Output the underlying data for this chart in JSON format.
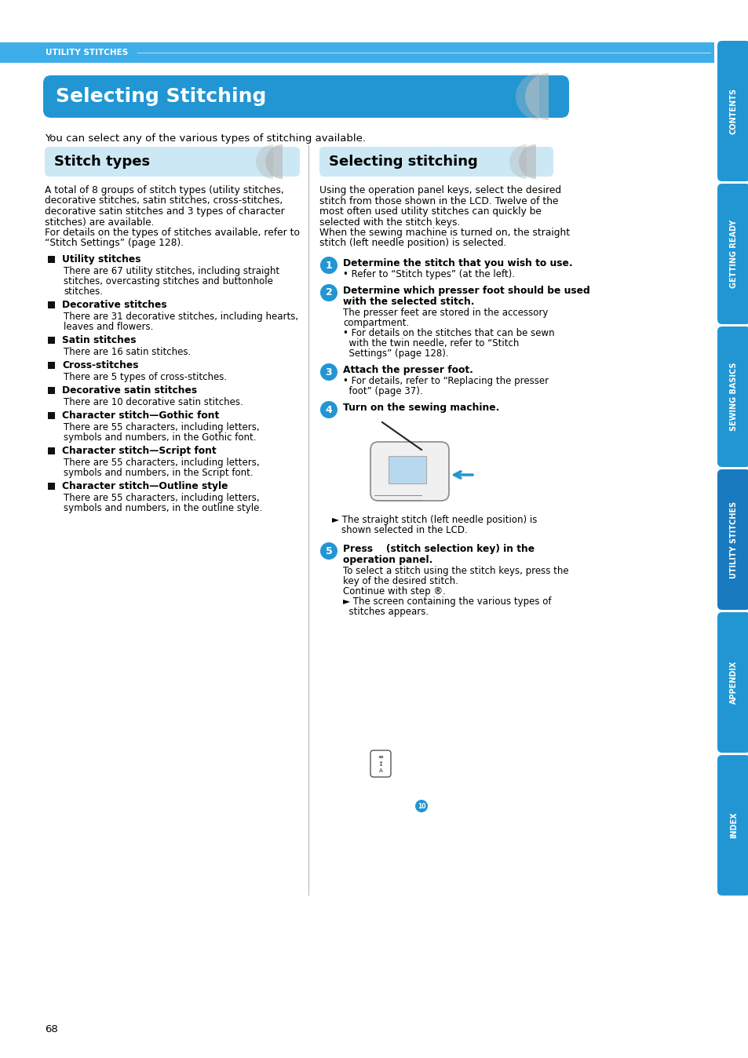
{
  "page_bg": "#ffffff",
  "header_bar_color": "#3daee9",
  "header_bar_text": "UTILITY STITCHES",
  "header_bar_text_color": "#ffffff",
  "main_title": "Selecting Stitching",
  "main_title_color": "#ffffff",
  "main_title_bg": "#2196d3",
  "subtitle_text": "You can select any of the various types of stitching available.",
  "left_section_title": "Stitch types",
  "left_section_bg": "#cde8f5",
  "right_section_title": "Selecting stitching",
  "right_section_bg": "#cde8f5",
  "tab_color": "#2196d3",
  "tab_text_color": "#ffffff",
  "tab_labels": [
    "CONTENTS",
    "GETTING READY",
    "SEWING BASICS",
    "UTILITY STITCHES",
    "APPENDIX",
    "INDEX"
  ],
  "step_circle_color": "#2196d3",
  "page_number": "68",
  "left_body_text": [
    "A total of 8 groups of stitch types (utility stitches,",
    "decorative stitches, satin stitches, cross-stitches,",
    "decorative satin stitches and 3 types of character",
    "stitches) are available.",
    "For details on the types of stitches available, refer to",
    "“Stitch Settings” (page 128)."
  ],
  "stitch_types": [
    {
      "bold": "Utility stitches",
      "text": "There are 67 utility stitches, including straight\nstitches, overcasting stitches and buttonhole\nstitches."
    },
    {
      "bold": "Decorative stitches",
      "text": "There are 31 decorative stitches, including hearts,\nleaves and flowers."
    },
    {
      "bold": "Satin stitches",
      "text": "There are 16 satin stitches."
    },
    {
      "bold": "Cross-stitches",
      "text": "There are 5 types of cross-stitches."
    },
    {
      "bold": "Decorative satin stitches",
      "text": "There are 10 decorative satin stitches."
    },
    {
      "bold": "Character stitch—Gothic font",
      "text": "There are 55 characters, including letters,\nsymbols and numbers, in the Gothic font."
    },
    {
      "bold": "Character stitch—Script font",
      "text": "There are 55 characters, including letters,\nsymbols and numbers, in the Script font."
    },
    {
      "bold": "Character stitch—Outline style",
      "text": "There are 55 characters, including letters,\nsymbols and numbers, in the outline style."
    }
  ],
  "right_intro": [
    "Using the operation panel keys, select the desired",
    "stitch from those shown in the LCD. Twelve of the",
    "most often used utility stitches can quickly be",
    "selected with the stitch keys.",
    "When the sewing machine is turned on, the straight",
    "stitch (left needle position) is selected."
  ],
  "steps": [
    {
      "num": "1",
      "bold_lines": [
        "Determine the stitch that you wish to use."
      ],
      "body_lines": [
        "• Refer to “Stitch types” (at the left)."
      ]
    },
    {
      "num": "2",
      "bold_lines": [
        "Determine which presser foot should be used",
        "with the selected stitch."
      ],
      "body_lines": [
        "The presser feet are stored in the accessory",
        "compartment.",
        "• For details on the stitches that can be sewn",
        "  with the twin needle, refer to “Stitch",
        "  Settings” (page 128)."
      ]
    },
    {
      "num": "3",
      "bold_lines": [
        "Attach the presser foot."
      ],
      "body_lines": [
        "• For details, refer to “Replacing the presser",
        "  foot” (page 37)."
      ]
    },
    {
      "num": "4",
      "bold_lines": [
        "Turn on the sewing machine."
      ],
      "body_lines": []
    },
    {
      "num": "5",
      "bold_lines": [
        "Press    (stitch selection key) in the",
        "operation panel."
      ],
      "body_lines": [
        "To select a stitch using the stitch keys, press the",
        "key of the desired stitch.",
        "Continue with step ®.",
        "► The screen containing the various types of",
        "  stitches appears."
      ]
    }
  ]
}
